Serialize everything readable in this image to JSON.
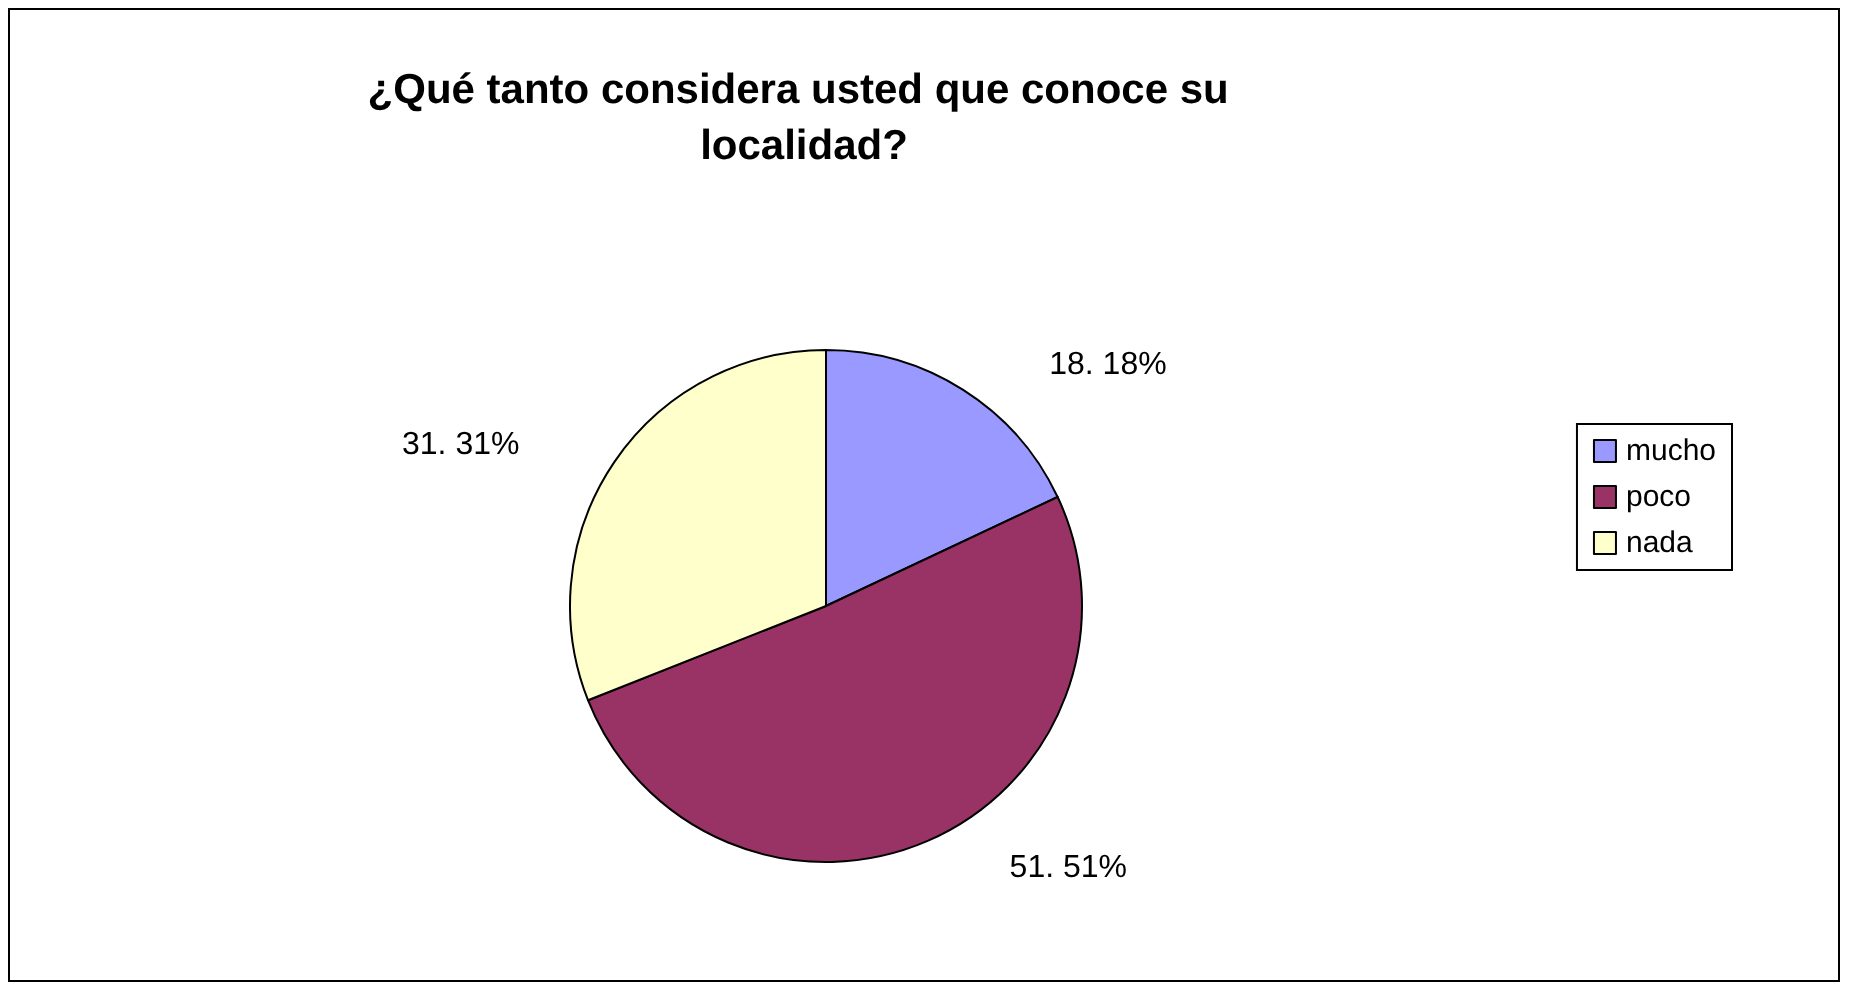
{
  "chart_data": {
    "type": "pie",
    "title": "¿Qué tanto considera usted que conoce su localidad?",
    "categories": [
      "mucho",
      "poco",
      "nada"
    ],
    "values": [
      18,
      51,
      31
    ],
    "colors": [
      "#9999ff",
      "#993366",
      "#ffffcc"
    ],
    "value_labels": [
      "18. 18%",
      "51. 51%",
      "31. 31%"
    ],
    "legend": "right"
  }
}
